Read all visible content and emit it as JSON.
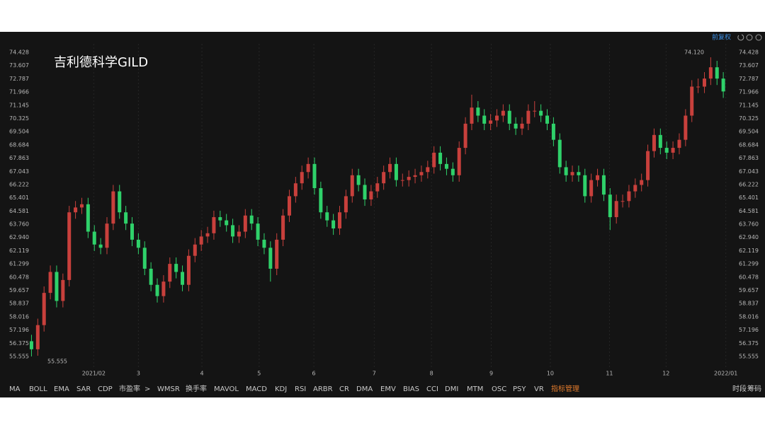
{
  "chart_data": {
    "type": "candlestick",
    "title": "吉利德科学GILD",
    "adjust_label": "前复权",
    "up_color": "#c8403c",
    "down_color": "#2fd16a",
    "max_label": "74.120",
    "min_label": "55.555",
    "ylim": [
      55.555,
      74.428
    ],
    "yticks": [
      55.555,
      56.375,
      57.196,
      58.016,
      58.837,
      59.657,
      60.478,
      61.299,
      62.119,
      {
        "value": 62.94,
        "label": "62.940"
      },
      {
        "value": 63.76,
        "label": "63.760"
      },
      64.581,
      65.401,
      66.222,
      67.043,
      67.863,
      68.684,
      69.504,
      70.325,
      71.145,
      71.966,
      72.787,
      73.607,
      74.428
    ],
    "xlim": [
      -0.5,
      111
    ],
    "xticks": [
      {
        "value": 9.9,
        "label": "2021/02"
      },
      {
        "value": 17,
        "label": "3"
      },
      {
        "value": 27.1,
        "label": "4"
      },
      {
        "value": 36.2,
        "label": "5"
      },
      {
        "value": 44.9,
        "label": "6"
      },
      {
        "value": 54.5,
        "label": "7"
      },
      {
        "value": 63.6,
        "label": "8"
      },
      {
        "value": 73.1,
        "label": "9"
      },
      {
        "value": 82.5,
        "label": "10"
      },
      {
        "value": 91.9,
        "label": "11"
      },
      {
        "value": 100.9,
        "label": "12"
      },
      {
        "value": 110.4,
        "label": "2022/01"
      }
    ],
    "grid": "x",
    "ohlc": [
      [
        56.5,
        56.9,
        55.555,
        56.0
      ],
      [
        56.0,
        57.9,
        55.6,
        57.5
      ],
      [
        57.5,
        59.9,
        57.1,
        59.5
      ],
      [
        59.5,
        61.2,
        59.1,
        60.8
      ],
      [
        60.8,
        61.2,
        58.6,
        59.0
      ],
      [
        59.0,
        60.7,
        58.6,
        60.3
      ],
      [
        60.3,
        64.9,
        59.9,
        64.5
      ],
      [
        64.5,
        65.2,
        64.1,
        64.8
      ],
      [
        64.8,
        65.4,
        64.4,
        65.0
      ],
      [
        65.0,
        65.4,
        62.9,
        63.3
      ],
      [
        63.3,
        63.7,
        62.1,
        62.5
      ],
      [
        62.5,
        62.9,
        61.9,
        62.3
      ],
      [
        62.3,
        64.2,
        61.9,
        63.8
      ],
      [
        63.8,
        66.2,
        63.4,
        65.8
      ],
      [
        65.8,
        66.2,
        64.1,
        64.5
      ],
      [
        64.5,
        64.9,
        63.4,
        63.8
      ],
      [
        63.8,
        64.2,
        62.4,
        62.8
      ],
      [
        62.8,
        63.2,
        61.9,
        62.3
      ],
      [
        62.3,
        62.7,
        60.6,
        61.0
      ],
      [
        61.0,
        61.4,
        59.6,
        60.0
      ],
      [
        60.0,
        60.4,
        58.9,
        59.3
      ],
      [
        59.3,
        60.6,
        58.9,
        60.2
      ],
      [
        60.2,
        61.7,
        59.8,
        61.3
      ],
      [
        61.3,
        61.7,
        60.4,
        60.8
      ],
      [
        60.8,
        61.2,
        59.6,
        60.0
      ],
      [
        60.0,
        62.2,
        59.6,
        61.8
      ],
      [
        61.8,
        62.9,
        61.4,
        62.5
      ],
      [
        62.5,
        63.4,
        62.1,
        63.0
      ],
      [
        63.0,
        63.6,
        62.6,
        63.2
      ],
      [
        63.2,
        64.6,
        62.8,
        64.2
      ],
      [
        64.2,
        64.6,
        63.6,
        64.0
      ],
      [
        64.0,
        64.4,
        63.3,
        63.7
      ],
      [
        63.7,
        64.1,
        62.6,
        63.0
      ],
      [
        63.0,
        63.7,
        62.6,
        63.3
      ],
      [
        63.3,
        64.7,
        62.9,
        64.3
      ],
      [
        64.3,
        64.7,
        63.4,
        63.8
      ],
      [
        63.8,
        64.2,
        62.4,
        62.8
      ],
      [
        62.8,
        63.2,
        61.9,
        62.3
      ],
      [
        62.3,
        62.7,
        60.2,
        61.0
      ],
      [
        61.0,
        63.2,
        60.6,
        62.8
      ],
      [
        62.8,
        64.7,
        62.4,
        64.3
      ],
      [
        64.3,
        65.9,
        63.9,
        65.5
      ],
      [
        65.5,
        66.7,
        65.1,
        66.3
      ],
      [
        66.3,
        67.4,
        65.9,
        67.0
      ],
      [
        67.0,
        67.9,
        66.6,
        67.5
      ],
      [
        67.5,
        67.9,
        65.6,
        66.0
      ],
      [
        66.0,
        66.4,
        64.1,
        64.5
      ],
      [
        64.5,
        64.9,
        63.6,
        64.0
      ],
      [
        64.0,
        64.4,
        63.1,
        63.5
      ],
      [
        63.5,
        64.9,
        63.1,
        64.5
      ],
      [
        64.5,
        65.9,
        64.1,
        65.5
      ],
      [
        65.5,
        67.2,
        65.1,
        66.8
      ],
      [
        66.8,
        67.2,
        65.8,
        66.2
      ],
      [
        66.2,
        66.6,
        64.9,
        65.3
      ],
      [
        65.3,
        66.2,
        64.9,
        65.8
      ],
      [
        65.8,
        66.7,
        65.4,
        66.3
      ],
      [
        66.3,
        67.4,
        65.9,
        67.0
      ],
      [
        67.0,
        67.9,
        66.6,
        67.5
      ],
      [
        67.5,
        67.9,
        66.1,
        66.5
      ],
      [
        66.5,
        66.9,
        66.1,
        66.5
      ],
      [
        66.5,
        67.1,
        66.1,
        66.7
      ],
      [
        66.7,
        67.2,
        66.3,
        66.8
      ],
      [
        66.8,
        67.4,
        66.4,
        67.0
      ],
      [
        67.0,
        67.7,
        66.6,
        67.3
      ],
      [
        67.3,
        68.6,
        66.9,
        68.2
      ],
      [
        68.2,
        68.6,
        67.1,
        67.5
      ],
      [
        67.5,
        67.9,
        66.8,
        67.2
      ],
      [
        67.2,
        67.6,
        66.4,
        66.8
      ],
      [
        66.8,
        68.9,
        66.4,
        68.5
      ],
      [
        68.5,
        70.4,
        68.1,
        70.0
      ],
      [
        70.0,
        71.8,
        69.6,
        71.0
      ],
      [
        71.0,
        71.4,
        70.1,
        70.5
      ],
      [
        70.5,
        70.9,
        69.6,
        70.0
      ],
      [
        70.0,
        70.6,
        69.6,
        70.2
      ],
      [
        70.2,
        70.9,
        69.8,
        70.5
      ],
      [
        70.5,
        71.2,
        70.1,
        70.8
      ],
      [
        70.8,
        71.2,
        69.6,
        70.0
      ],
      [
        70.0,
        70.4,
        69.3,
        69.7
      ],
      [
        69.7,
        70.4,
        69.3,
        70.0
      ],
      [
        70.0,
        71.2,
        69.6,
        70.8
      ],
      [
        70.8,
        71.4,
        70.4,
        70.8
      ],
      [
        70.8,
        71.2,
        70.1,
        70.5
      ],
      [
        70.5,
        70.9,
        69.6,
        70.0
      ],
      [
        70.0,
        70.4,
        68.6,
        69.0
      ],
      [
        69.0,
        69.4,
        66.9,
        67.3
      ],
      [
        67.3,
        67.7,
        66.4,
        66.8
      ],
      [
        66.8,
        67.4,
        66.4,
        67.0
      ],
      [
        67.0,
        67.4,
        66.4,
        66.8
      ],
      [
        66.8,
        67.2,
        65.1,
        65.5
      ],
      [
        65.5,
        66.9,
        65.1,
        66.5
      ],
      [
        66.5,
        67.2,
        66.1,
        66.8
      ],
      [
        66.8,
        67.2,
        65.2,
        65.6
      ],
      [
        65.6,
        66.0,
        63.4,
        64.2
      ],
      [
        64.2,
        65.6,
        63.8,
        65.2
      ],
      [
        65.2,
        65.6,
        64.8,
        65.2
      ],
      [
        65.2,
        66.2,
        64.8,
        65.8
      ],
      [
        65.8,
        66.6,
        65.4,
        66.2
      ],
      [
        66.2,
        66.9,
        65.8,
        66.5
      ],
      [
        66.5,
        68.7,
        66.1,
        68.3
      ],
      [
        68.3,
        69.7,
        67.9,
        69.3
      ],
      [
        69.3,
        69.7,
        68.1,
        68.5
      ],
      [
        68.5,
        68.9,
        67.8,
        68.2
      ],
      [
        68.2,
        68.9,
        67.8,
        68.5
      ],
      [
        68.5,
        69.4,
        68.1,
        69.0
      ],
      [
        69.0,
        70.9,
        68.6,
        70.5
      ],
      [
        70.5,
        72.7,
        70.1,
        72.3
      ],
      [
        72.3,
        72.8,
        71.9,
        72.3
      ],
      [
        72.3,
        73.2,
        71.9,
        72.8
      ],
      [
        72.8,
        74.12,
        72.4,
        73.5
      ],
      [
        73.5,
        73.9,
        72.4,
        72.8
      ],
      [
        72.8,
        73.2,
        71.6,
        72.0
      ]
    ]
  },
  "indicators": [
    "MA",
    "BOLL",
    "EMA",
    "SAR",
    "CDP",
    "市盈率",
    "WMSR",
    "换手率",
    "MAVOL",
    "MACD",
    "KDJ",
    "RSI",
    "ARBR",
    "CR",
    "DMA",
    "EMV",
    "BIAS",
    "CCI",
    "DMI",
    "MTM",
    "OSC",
    "PSY",
    "VR",
    "指标管理"
  ],
  "right_buttons": [
    "时段",
    "筹码"
  ]
}
